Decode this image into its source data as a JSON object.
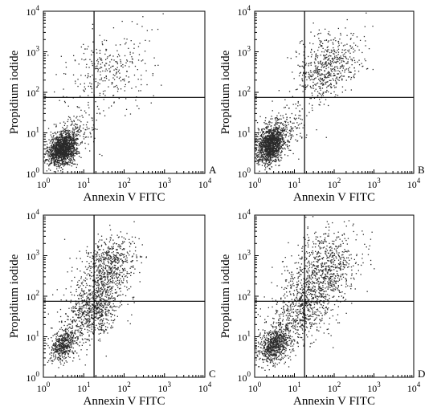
{
  "figure": {
    "background": "#ffffff",
    "ink": "#000000",
    "dot_color": "#2a2a2a"
  },
  "chart_data": [
    {
      "type": "scatter",
      "panel_label": "A",
      "xlabel": "Annexin V FITC",
      "ylabel": "Propidium iodide",
      "xscale": "log",
      "yscale": "log",
      "xlim": [
        1,
        10000
      ],
      "ylim": [
        1,
        10000
      ],
      "quadrant_gate": {
        "x": 18,
        "y": 75
      },
      "grid": false,
      "clusters": [
        {
          "center": [
            3,
            4
          ],
          "spread_log": [
            0.17,
            0.2
          ],
          "count": 1400
        },
        {
          "center": [
            6,
            10
          ],
          "spread_log": [
            0.3,
            0.3
          ],
          "count": 150
        },
        {
          "center": [
            40,
            350
          ],
          "spread_log": [
            0.55,
            0.5
          ],
          "count": 320
        }
      ]
    },
    {
      "type": "scatter",
      "panel_label": "B",
      "xlabel": "Annexin V FITC",
      "ylabel": "Propidium iodide",
      "xscale": "log",
      "yscale": "log",
      "xlim": [
        1,
        10000
      ],
      "ylim": [
        1,
        10000
      ],
      "quadrant_gate": {
        "x": 18,
        "y": 75
      },
      "grid": false,
      "clusters": [
        {
          "center": [
            2.5,
            5
          ],
          "spread_log": [
            0.17,
            0.22
          ],
          "count": 1300
        },
        {
          "center": [
            6,
            12
          ],
          "spread_log": [
            0.3,
            0.3
          ],
          "count": 200
        },
        {
          "center": [
            70,
            450
          ],
          "spread_log": [
            0.4,
            0.4
          ],
          "count": 600
        }
      ]
    },
    {
      "type": "scatter",
      "panel_label": "C",
      "xlabel": "Annexin V FITC",
      "ylabel": "Propidium iodide",
      "xscale": "log",
      "yscale": "log",
      "xlim": [
        1,
        10000
      ],
      "ylim": [
        1,
        10000
      ],
      "quadrant_gate": {
        "x": 18,
        "y": 75
      },
      "grid": false,
      "clusters": [
        {
          "center": [
            3,
            6
          ],
          "spread_log": [
            0.16,
            0.18
          ],
          "count": 450
        },
        {
          "center": [
            15,
            40
          ],
          "spread_log": [
            0.35,
            0.35
          ],
          "count": 700
        },
        {
          "center": [
            40,
            500
          ],
          "spread_log": [
            0.35,
            0.4
          ],
          "count": 700
        }
      ]
    },
    {
      "type": "scatter",
      "panel_label": "D",
      "xlabel": "Annexin V FITC",
      "ylabel": "Propidium iodide",
      "xscale": "log",
      "yscale": "log",
      "xlim": [
        1,
        10000
      ],
      "ylim": [
        1,
        10000
      ],
      "quadrant_gate": {
        "x": 18,
        "y": 75
      },
      "grid": false,
      "clusters": [
        {
          "center": [
            3,
            6
          ],
          "spread_log": [
            0.2,
            0.22
          ],
          "count": 700
        },
        {
          "center": [
            15,
            40
          ],
          "spread_log": [
            0.4,
            0.4
          ],
          "count": 600
        },
        {
          "center": [
            50,
            450
          ],
          "spread_log": [
            0.45,
            0.45
          ],
          "count": 800
        }
      ]
    }
  ]
}
